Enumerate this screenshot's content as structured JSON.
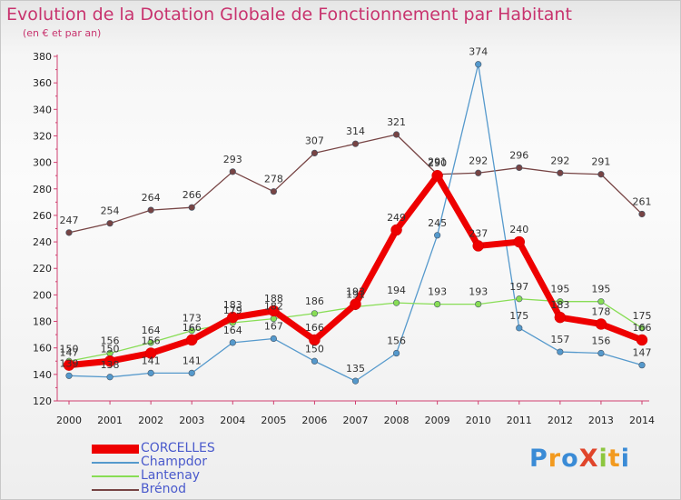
{
  "title": "Evolution de la Dotation Globale de Fonctionnement par Habitant",
  "subtitle": "(en € et par an)",
  "logo_text": "ProXiti",
  "chart_data": {
    "type": "line",
    "categories": [
      "2000",
      "2001",
      "2002",
      "2003",
      "2004",
      "2005",
      "2006",
      "2007",
      "2008",
      "2009",
      "2010",
      "2011",
      "2012",
      "2013",
      "2014"
    ],
    "ylim": [
      120,
      380
    ],
    "yticks": [
      120,
      140,
      160,
      180,
      200,
      220,
      240,
      260,
      280,
      300,
      320,
      340,
      360,
      380
    ],
    "grid": false,
    "legend_position": "bottom-left",
    "series": [
      {
        "name": "CORCELLES",
        "color": "#ee0000",
        "values": [
          147,
          150,
          156,
          166,
          183,
          188,
          166,
          193,
          249,
          290,
          237,
          240,
          183,
          178,
          166
        ]
      },
      {
        "name": "Champdor",
        "color": "#5599cc",
        "values": [
          139,
          138,
          141,
          141,
          164,
          167,
          150,
          135,
          156,
          245,
          374,
          175,
          157,
          156,
          147
        ]
      },
      {
        "name": "Lantenay",
        "color": "#88dd55",
        "values": [
          150,
          156,
          164,
          173,
          179,
          182,
          186,
          191,
          194,
          193,
          193,
          197,
          195,
          195,
          175
        ]
      },
      {
        "name": "Brénod",
        "color": "#774444",
        "values": [
          247,
          254,
          264,
          266,
          293,
          278,
          307,
          314,
          321,
          291,
          292,
          296,
          292,
          291,
          261
        ]
      }
    ]
  }
}
